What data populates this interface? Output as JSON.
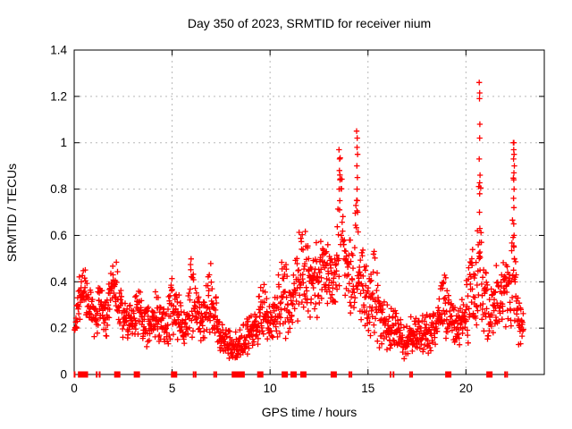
{
  "title": "Day 350 of 2023, SRMTID for receiver nium",
  "chart_data": {
    "type": "scatter",
    "title": "Day 350 of 2023, SRMTID for receiver nium",
    "xlabel": "GPS time / hours",
    "ylabel": "SRMTID / TECUs",
    "xlim": [
      0,
      24
    ],
    "ylim": [
      0,
      1.4
    ],
    "xticks": [
      0,
      5,
      10,
      15,
      20
    ],
    "yticks": [
      0,
      0.2,
      0.4,
      0.6,
      0.8,
      1,
      1.2,
      1.4
    ],
    "grid": true,
    "legend": "none",
    "marker": "plus",
    "marker_color": "#ff0000",
    "grid_color": "#b8b8b8",
    "axis_color": "#000000",
    "n_samples": 1600,
    "t_start": 0.02,
    "t_end": 22.95,
    "seed": 42,
    "envelope": [
      [
        0.0,
        0.14,
        0.22
      ],
      [
        0.25,
        0.22,
        0.42
      ],
      [
        0.5,
        0.25,
        0.48
      ],
      [
        0.8,
        0.2,
        0.4
      ],
      [
        1.05,
        0.15,
        0.3
      ],
      [
        1.3,
        0.18,
        0.4
      ],
      [
        1.6,
        0.14,
        0.32
      ],
      [
        1.9,
        0.22,
        0.5
      ],
      [
        2.1,
        0.2,
        0.52
      ],
      [
        2.4,
        0.15,
        0.36
      ],
      [
        2.7,
        0.12,
        0.3
      ],
      [
        3.0,
        0.13,
        0.32
      ],
      [
        3.3,
        0.15,
        0.42
      ],
      [
        3.6,
        0.1,
        0.28
      ],
      [
        3.9,
        0.12,
        0.3
      ],
      [
        4.2,
        0.14,
        0.38
      ],
      [
        4.6,
        0.1,
        0.28
      ],
      [
        5.0,
        0.12,
        0.45
      ],
      [
        5.3,
        0.14,
        0.36
      ],
      [
        5.7,
        0.1,
        0.26
      ],
      [
        6.0,
        0.14,
        0.55
      ],
      [
        6.3,
        0.12,
        0.36
      ],
      [
        6.6,
        0.12,
        0.32
      ],
      [
        7.0,
        0.14,
        0.5
      ],
      [
        7.3,
        0.1,
        0.3
      ],
      [
        7.6,
        0.07,
        0.22
      ],
      [
        8.0,
        0.05,
        0.18
      ],
      [
        8.4,
        0.06,
        0.2
      ],
      [
        8.8,
        0.07,
        0.24
      ],
      [
        9.2,
        0.1,
        0.28
      ],
      [
        9.6,
        0.12,
        0.42
      ],
      [
        10.0,
        0.1,
        0.3
      ],
      [
        10.3,
        0.12,
        0.36
      ],
      [
        10.65,
        0.14,
        0.58
      ],
      [
        11.0,
        0.12,
        0.4
      ],
      [
        11.45,
        0.2,
        0.68
      ],
      [
        11.8,
        0.24,
        0.62
      ],
      [
        12.1,
        0.2,
        0.5
      ],
      [
        12.45,
        0.24,
        0.6
      ],
      [
        12.8,
        0.28,
        0.62
      ],
      [
        13.1,
        0.2,
        0.55
      ],
      [
        13.35,
        0.25,
        0.6
      ],
      [
        13.55,
        0.3,
        0.98
      ],
      [
        13.75,
        0.32,
        0.85
      ],
      [
        14.05,
        0.25,
        0.6
      ],
      [
        14.3,
        0.2,
        0.6
      ],
      [
        14.45,
        0.2,
        1.05
      ],
      [
        14.6,
        0.15,
        0.6
      ],
      [
        14.9,
        0.12,
        0.48
      ],
      [
        15.3,
        0.1,
        0.55
      ],
      [
        15.7,
        0.1,
        0.36
      ],
      [
        16.1,
        0.08,
        0.3
      ],
      [
        16.5,
        0.08,
        0.28
      ],
      [
        16.9,
        0.05,
        0.2
      ],
      [
        17.3,
        0.07,
        0.28
      ],
      [
        17.7,
        0.08,
        0.25
      ],
      [
        18.1,
        0.08,
        0.28
      ],
      [
        18.5,
        0.1,
        0.3
      ],
      [
        18.9,
        0.12,
        0.45
      ],
      [
        19.2,
        0.1,
        0.36
      ],
      [
        19.6,
        0.1,
        0.3
      ],
      [
        20.0,
        0.12,
        0.4
      ],
      [
        20.3,
        0.14,
        0.55
      ],
      [
        20.55,
        0.15,
        0.5
      ],
      [
        20.7,
        0.2,
        1.1
      ],
      [
        20.85,
        0.15,
        0.5
      ],
      [
        21.2,
        0.14,
        0.38
      ],
      [
        21.6,
        0.15,
        0.4
      ],
      [
        22.0,
        0.15,
        0.52
      ],
      [
        22.3,
        0.14,
        0.45
      ],
      [
        22.45,
        0.15,
        0.95
      ],
      [
        22.6,
        0.12,
        0.4
      ],
      [
        22.8,
        0.1,
        0.32
      ],
      [
        22.95,
        0.12,
        0.28
      ]
    ],
    "spike_points": [
      [
        20.68,
        1.26
      ],
      [
        20.7,
        1.215
      ],
      [
        20.69,
        1.19
      ],
      [
        20.71,
        1.08
      ],
      [
        20.7,
        1.02
      ],
      [
        20.68,
        0.93
      ],
      [
        20.72,
        0.86
      ],
      [
        20.7,
        0.78
      ],
      [
        20.69,
        0.7
      ],
      [
        20.71,
        0.63
      ],
      [
        20.7,
        0.57
      ],
      [
        20.68,
        0.5
      ],
      [
        20.72,
        0.45
      ],
      [
        22.42,
        1.0
      ],
      [
        22.45,
        1.0
      ],
      [
        22.44,
        0.97
      ],
      [
        22.46,
        0.95
      ],
      [
        22.43,
        0.93
      ],
      [
        22.47,
        0.9
      ],
      [
        22.45,
        0.87
      ],
      [
        22.44,
        0.84
      ],
      [
        22.46,
        0.8
      ],
      [
        22.43,
        0.76
      ],
      [
        22.45,
        0.72
      ],
      [
        22.44,
        0.65
      ],
      [
        22.46,
        0.6
      ],
      [
        22.45,
        0.55
      ],
      [
        22.47,
        0.5
      ],
      [
        22.43,
        0.45
      ],
      [
        21.0,
        0.44
      ],
      [
        21.55,
        0.47
      ],
      [
        14.42,
        1.05
      ],
      [
        14.45,
        1.02
      ],
      [
        14.44,
        0.98
      ],
      [
        14.47,
        0.95
      ],
      [
        14.43,
        0.9
      ],
      [
        14.46,
        0.85
      ],
      [
        14.44,
        0.8
      ],
      [
        14.45,
        0.75
      ],
      [
        14.47,
        0.7
      ],
      [
        13.52,
        0.97
      ],
      [
        13.55,
        0.93
      ],
      [
        13.54,
        0.88
      ],
      [
        13.57,
        0.84
      ],
      [
        13.53,
        0.8
      ],
      [
        13.56,
        0.75
      ]
    ],
    "zero_flag_markers": {
      "squares": [
        0.35,
        0.55,
        2.2,
        3.2,
        5.1,
        8.2,
        8.4,
        8.55,
        9.5,
        10.75,
        11.2,
        11.7,
        13.25,
        19.1,
        21.2
      ],
      "thin_ticks": [
        0.02,
        1.15,
        1.3,
        6.1,
        6.2,
        7.15,
        7.25,
        14.05,
        14.15,
        16.15,
        16.3,
        17.15,
        17.25,
        22.0,
        22.1
      ]
    }
  }
}
